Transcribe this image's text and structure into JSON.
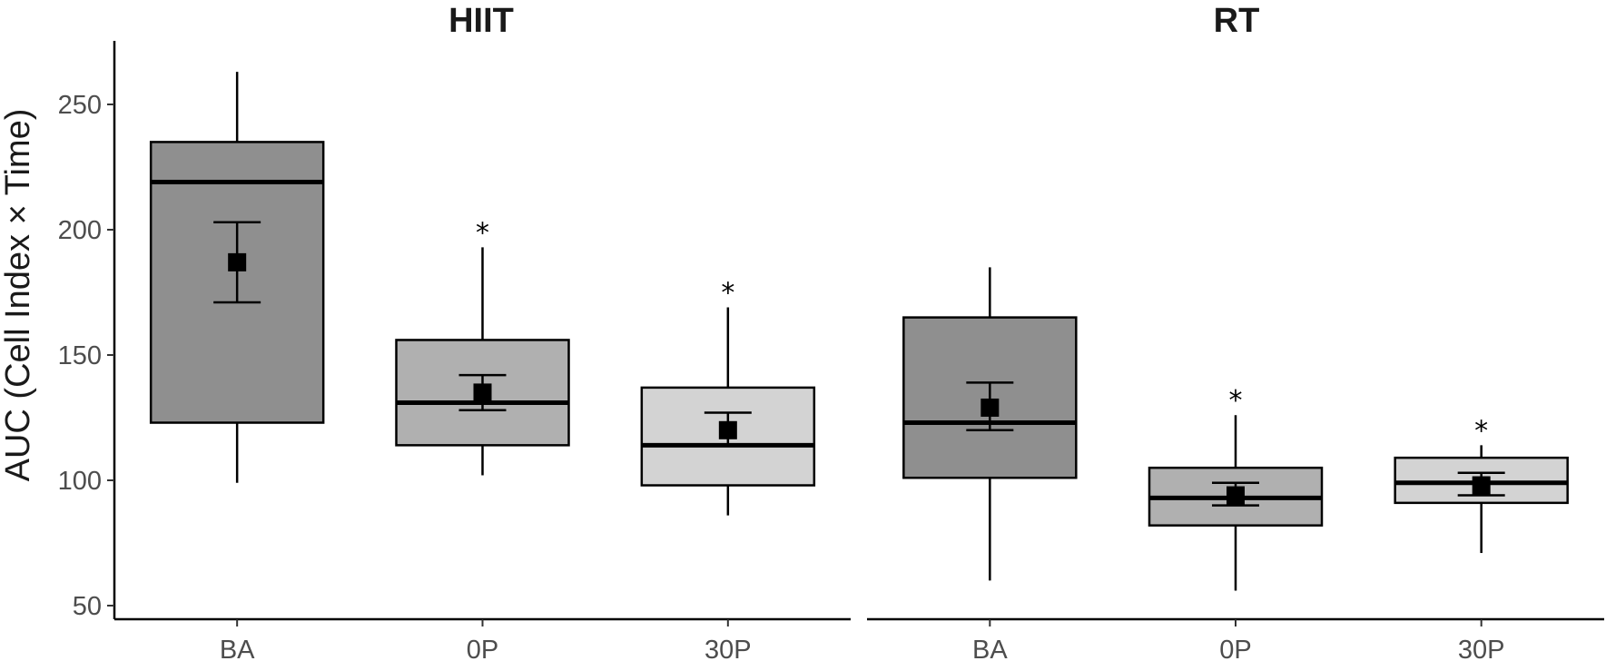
{
  "chart_data": {
    "type": "box",
    "ylabel": "AUC (Cell Index × Time)",
    "ylim": [
      44,
      270
    ],
    "yticks": [
      50,
      100,
      150,
      200,
      250
    ],
    "colors": {
      "BA": "#8f8f8f",
      "0P": "#b0b0b0",
      "30P": "#d3d3d3"
    },
    "panels": [
      {
        "title": "HIIT",
        "groups": [
          {
            "label": "BA",
            "whisker_low": 99,
            "q1": 123,
            "median": 219,
            "q3": 235,
            "whisker_high": 263,
            "mean": 187,
            "se_low": 171,
            "se_high": 203,
            "significance": ""
          },
          {
            "label": "0P",
            "whisker_low": 102,
            "q1": 114,
            "median": 131,
            "q3": 156,
            "whisker_high": 193,
            "mean": 135,
            "se_low": 128,
            "se_high": 142,
            "significance": "*"
          },
          {
            "label": "30P",
            "whisker_low": 86,
            "q1": 98,
            "median": 114,
            "q3": 137,
            "whisker_high": 169,
            "mean": 120,
            "se_low": 114,
            "se_high": 127,
            "significance": "*"
          }
        ]
      },
      {
        "title": "RT",
        "groups": [
          {
            "label": "BA",
            "whisker_low": 60,
            "q1": 101,
            "median": 123,
            "q3": 165,
            "whisker_high": 185,
            "mean": 129,
            "se_low": 120,
            "se_high": 139,
            "significance": ""
          },
          {
            "label": "0P",
            "whisker_low": 56,
            "q1": 82,
            "median": 93,
            "q3": 105,
            "whisker_high": 126,
            "mean": 94,
            "se_low": 90,
            "se_high": 99,
            "significance": "*"
          },
          {
            "label": "30P",
            "whisker_low": 71,
            "q1": 91,
            "median": 99,
            "q3": 109,
            "whisker_high": 114,
            "mean": 98,
            "se_low": 94,
            "se_high": 103,
            "significance": "*"
          }
        ]
      }
    ]
  }
}
